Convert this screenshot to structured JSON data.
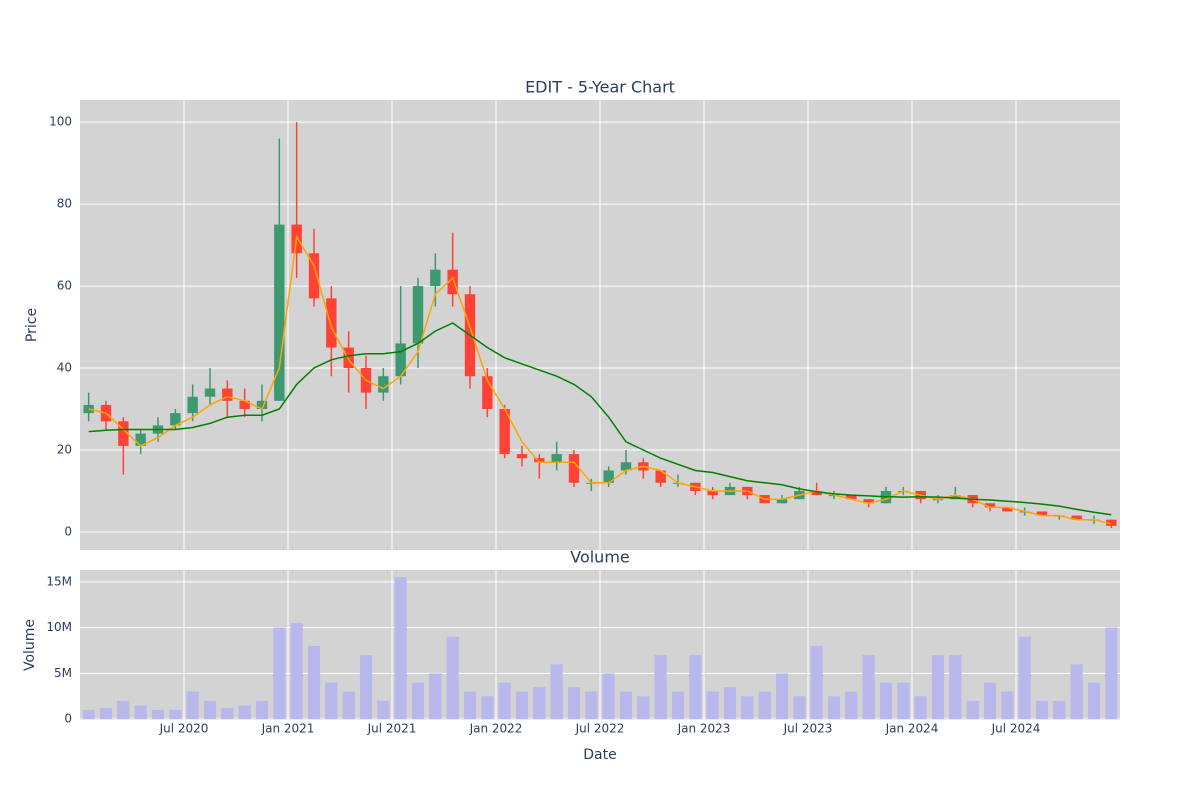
{
  "chart_data": [
    {
      "type": "candlestick",
      "title": "EDIT - 5-Year Chart",
      "ylabel": "Price",
      "x": [
        "2020-01",
        "2020-02",
        "2020-03",
        "2020-04",
        "2020-05",
        "2020-06",
        "2020-07",
        "2020-08",
        "2020-09",
        "2020-10",
        "2020-11",
        "2020-12",
        "2021-01",
        "2021-02",
        "2021-03",
        "2021-04",
        "2021-05",
        "2021-06",
        "2021-07",
        "2021-08",
        "2021-09",
        "2021-10",
        "2021-11",
        "2021-12",
        "2022-01",
        "2022-02",
        "2022-03",
        "2022-04",
        "2022-05",
        "2022-06",
        "2022-07",
        "2022-08",
        "2022-09",
        "2022-10",
        "2022-11",
        "2022-12",
        "2023-01",
        "2023-02",
        "2023-03",
        "2023-04",
        "2023-05",
        "2023-06",
        "2023-07",
        "2023-08",
        "2023-09",
        "2023-10",
        "2023-11",
        "2023-12",
        "2024-01",
        "2024-02",
        "2024-03",
        "2024-04",
        "2024-05",
        "2024-06",
        "2024-07",
        "2024-08",
        "2024-09",
        "2024-10",
        "2024-11",
        "2024-12"
      ],
      "open": [
        29,
        31,
        27,
        21,
        24,
        26,
        29,
        33,
        35,
        32,
        30,
        32,
        75,
        68,
        57,
        45,
        40,
        34,
        38,
        46,
        60,
        64,
        58,
        38,
        30,
        19,
        18,
        17,
        19,
        12,
        12,
        15,
        17,
        15,
        12,
        12,
        10,
        9,
        11,
        9,
        7,
        8,
        10,
        9,
        9,
        8,
        7,
        10,
        10,
        8,
        8,
        9,
        7,
        6,
        5,
        5,
        4,
        4,
        3,
        3
      ],
      "high": [
        34,
        32,
        28,
        25,
        28,
        30,
        36,
        40,
        37,
        35,
        36,
        96,
        100,
        74,
        60,
        49,
        43,
        40,
        60,
        62,
        68,
        73,
        60,
        40,
        31,
        21,
        19,
        22,
        20,
        13,
        16,
        20,
        18,
        15,
        14,
        12,
        11,
        12,
        11,
        9,
        9,
        11,
        12,
        10,
        9,
        8,
        11,
        11,
        10,
        9,
        11,
        9,
        7,
        6,
        6,
        5,
        4,
        4,
        4,
        3
      ],
      "low": [
        27,
        25,
        14,
        19,
        22,
        25,
        27,
        31,
        28,
        28,
        27,
        32,
        62,
        55,
        38,
        34,
        30,
        32,
        36,
        40,
        55,
        55,
        35,
        28,
        18,
        16,
        13,
        15,
        11,
        10,
        11,
        14,
        13,
        11,
        11,
        9,
        8,
        9,
        8,
        7,
        7,
        8,
        9,
        8,
        8,
        6,
        7,
        9,
        7,
        7,
        8,
        6,
        5,
        5,
        4,
        4,
        3,
        3,
        2,
        1
      ],
      "close": [
        31,
        27,
        21,
        24,
        26,
        29,
        33,
        35,
        32,
        30,
        32,
        75,
        68,
        57,
        45,
        40,
        34,
        38,
        46,
        60,
        64,
        58,
        38,
        30,
        19,
        18,
        17,
        19,
        12,
        12,
        15,
        17,
        15,
        12,
        12,
        10,
        9,
        11,
        9,
        7,
        8,
        10,
        9,
        9,
        8,
        7,
        10,
        10,
        8,
        8,
        9,
        7,
        6,
        5,
        5,
        4,
        4,
        3,
        3,
        1.5
      ],
      "increasing_color": "#3d9970",
      "decreasing_color": "#ff4136",
      "lines": [
        {
          "color": "#ffa500",
          "values": [
            30,
            29,
            25,
            21,
            23,
            26,
            28,
            31,
            33,
            32,
            30,
            40,
            72,
            65,
            50,
            42,
            37,
            35,
            38,
            44,
            58,
            62,
            50,
            37,
            30,
            22,
            17,
            17,
            17,
            12,
            12,
            15,
            16,
            15,
            12,
            11,
            10,
            10,
            10,
            8,
            8,
            9,
            10,
            9,
            8,
            7,
            8,
            10,
            9,
            8,
            9,
            8,
            6,
            6,
            5,
            4,
            4,
            3,
            3,
            2
          ]
        },
        {
          "color": "#008000",
          "values": [
            24.5,
            24.8,
            25,
            25,
            25,
            25,
            25.5,
            26.5,
            28,
            28.5,
            28.5,
            30,
            36,
            40,
            42,
            43,
            43.5,
            43.5,
            44,
            46,
            49,
            51,
            48,
            45,
            42.5,
            41,
            39.5,
            38,
            36,
            33,
            28,
            22,
            20,
            18,
            16.5,
            15,
            14.5,
            13.5,
            12.5,
            12,
            11.5,
            10.5,
            9.8,
            9.3,
            9,
            8.8,
            8.6,
            8.5,
            8.6,
            8.5,
            8.3,
            8,
            7.8,
            7.5,
            7.2,
            6.8,
            6.3,
            5.5,
            4.8,
            4.2
          ]
        }
      ],
      "xlim": [
        "2020-01",
        "2024-12"
      ],
      "xticks": [
        {
          "value": "2020-07",
          "label": "Jul 2020"
        },
        {
          "value": "2021-01",
          "label": "Jan 2021"
        },
        {
          "value": "2021-07",
          "label": "Jul 2021"
        },
        {
          "value": "2022-01",
          "label": "Jan 2022"
        },
        {
          "value": "2022-07",
          "label": "Jul 2022"
        },
        {
          "value": "2023-01",
          "label": "Jan 2023"
        },
        {
          "value": "2023-07",
          "label": "Jul 2023"
        },
        {
          "value": "2024-01",
          "label": "Jan 2024"
        },
        {
          "value": "2024-07",
          "label": "Jul 2024"
        }
      ],
      "ylim": [
        -4.4,
        105.4
      ],
      "yticks": [
        0,
        20,
        40,
        60,
        80,
        100
      ],
      "grid": true
    },
    {
      "type": "bar",
      "title": "Volume",
      "ylabel": "Volume",
      "xlabel": "Date",
      "color": "#b8b8ec",
      "values": [
        1000000,
        1200000,
        2000000,
        1500000,
        1000000,
        1000000,
        3000000,
        2000000,
        1200000,
        1500000,
        2000000,
        10000000,
        10500000,
        8000000,
        4000000,
        3000000,
        7000000,
        2000000,
        15500000,
        4000000,
        5000000,
        9000000,
        3000000,
        2500000,
        4000000,
        3000000,
        3500000,
        6000000,
        3500000,
        3000000,
        5000000,
        3000000,
        2500000,
        7000000,
        3000000,
        7000000,
        3000000,
        3500000,
        2500000,
        3000000,
        5000000,
        2500000,
        8000000,
        2500000,
        3000000,
        7000000,
        4000000,
        4000000,
        2500000,
        7000000,
        7000000,
        2000000,
        4000000,
        3000000,
        9000000,
        2000000,
        2000000,
        6000000,
        4000000,
        10000000
      ],
      "ylim": [
        -100000,
        16300000
      ],
      "yticks": [
        0,
        {
          "value": 5000000,
          "label": "5M"
        },
        {
          "value": 10000000,
          "label": "10M"
        },
        {
          "value": 15000000,
          "label": "15M"
        }
      ],
      "grid": true
    }
  ]
}
